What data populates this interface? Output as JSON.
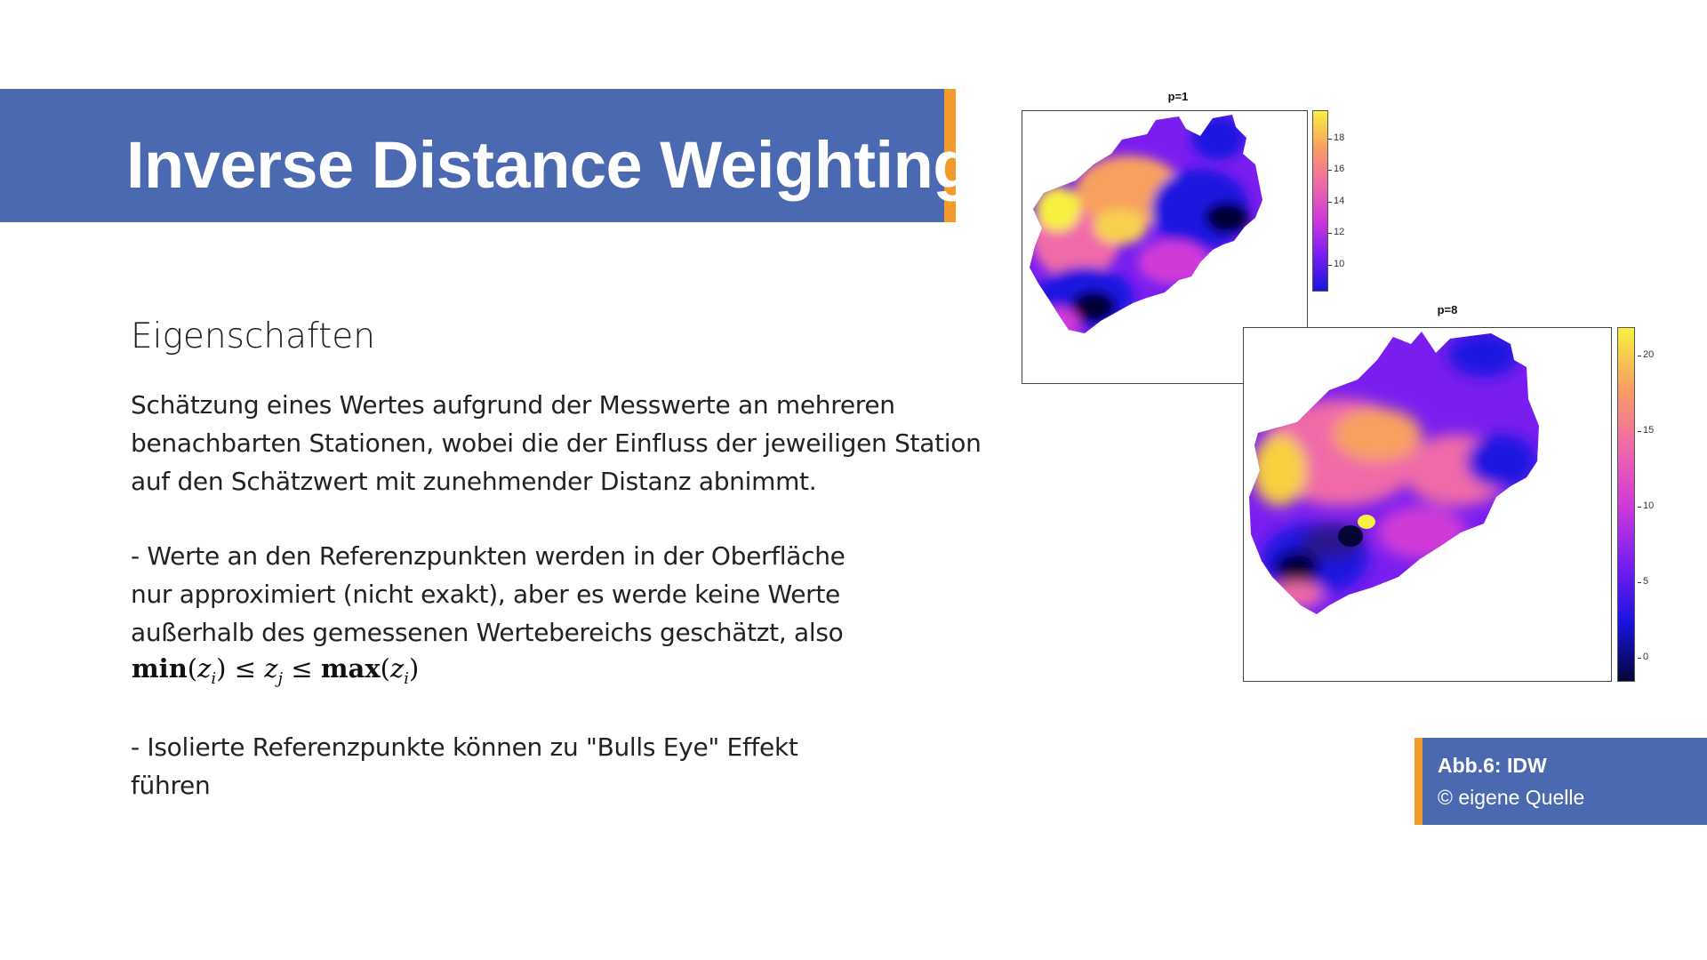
{
  "slide": {
    "title": "Inverse Distance Weighting",
    "subheading": "Eigenschaften",
    "paragraph1": [
      "Schätzung eines Wertes aufgrund der Messwerte an mehreren",
      "benachbarten Stationen, wobei die der Einfluss der jeweiligen Station",
      "auf den Schätzwert mit zunehmender Distanz abnimmt."
    ],
    "bullet1": [
      "- Werte an den Referenzpunkten werden in der Oberfläche",
      "nur approximiert (nicht exakt), aber es werde keine Werte",
      "außerhalb des gemessenen Wertebereichs geschätzt, also"
    ],
    "formula": "min(z_i) ≤ z_j ≤ max(z_i)",
    "bullet2": [
      "- Isolierte Referenzpunkte können zu \"Bulls Eye\" Effekt",
      "führen"
    ]
  },
  "figure": {
    "map1": {
      "title": "p=1",
      "colorbar_ticks": [
        "18",
        "16",
        "14",
        "12",
        "10"
      ]
    },
    "map2": {
      "title": "p=8",
      "colorbar_ticks": [
        "20",
        "15",
        "10",
        "5",
        "0"
      ]
    },
    "colors": {
      "low": "#050536",
      "blue": "#1a14e0",
      "violet": "#7a1ef0",
      "magenta": "#d03ad8",
      "pink": "#f06aa8",
      "orange": "#f8a060",
      "yellow": "#f8f040"
    }
  },
  "caption": {
    "line1": "Abb.6: IDW",
    "line2": "© eigene Quelle"
  },
  "theme": {
    "band": "#4a69b0",
    "accent": "#f39a2c"
  }
}
